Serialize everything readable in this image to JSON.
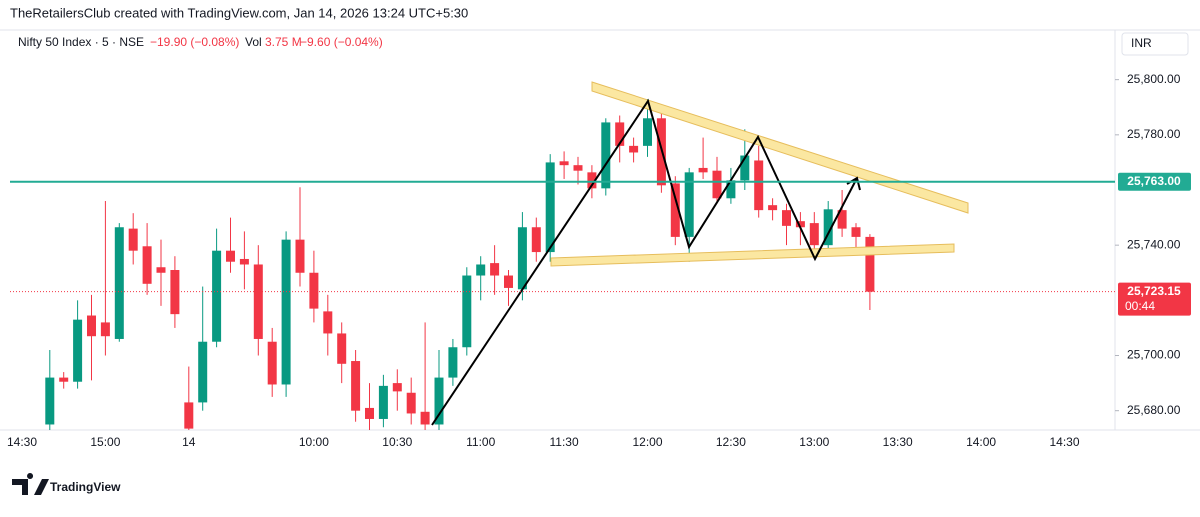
{
  "header": {
    "attribution": "TheRetailersClub created with TradingView.com, Jan 14, 2026 13:24 UTC+5:30",
    "symbol": "Nifty 50 Index · 5 · NSE",
    "change": "−19.90 (−0.08%)",
    "volume_label": "Vol",
    "volume": "3.75 M",
    "volume_change": "−9.60 (−0.04%)",
    "currency": "INR"
  },
  "footer": {
    "brand": "TradingView"
  },
  "chart_data": {
    "type": "candlestick",
    "up_color": "#089981",
    "down_color": "#f23645",
    "categories": [
      "14:30",
      null,
      null,
      null,
      null,
      null,
      "15:00",
      null,
      null,
      null,
      null,
      null,
      "14",
      null,
      null,
      null,
      null,
      null,
      null,
      null,
      null,
      "10:00",
      null,
      null,
      null,
      null,
      null,
      "10:30",
      null,
      null,
      null,
      null,
      null,
      "11:00",
      null,
      null,
      null,
      null,
      null,
      "11:30",
      null,
      null,
      null,
      null,
      null,
      "12:00",
      null,
      null,
      null,
      null,
      null,
      "12:30",
      null,
      null,
      null,
      null,
      null,
      "13:00",
      null,
      null,
      null,
      null,
      null,
      "13:30",
      null,
      null,
      null,
      null,
      null,
      "14:00",
      null,
      null,
      null,
      null,
      null,
      "14:30",
      null,
      null,
      null
    ],
    "open": [
      null,
      null,
      25675,
      25692,
      25690.5,
      25714.5,
      25712,
      25706,
      25746,
      25739.6,
      25732,
      25731,
      25683,
      25683,
      25705,
      25738,
      25735,
      25733,
      25705,
      25689.5,
      25742,
      25730,
      25716,
      25708,
      25698,
      25681,
      25677,
      25690,
      25686.5,
      25679.6,
      25675,
      25692,
      25703,
      25729,
      25733.5,
      25729,
      25724,
      25746.5,
      25737.5,
      25770.4,
      25769,
      25766.4,
      25760.6,
      25784.5,
      25776,
      25776,
      25786,
      25762.4,
      25743,
      25768,
      25767,
      25757,
      25763.5,
      25770.7,
      25754.5,
      25752.7,
      25748.7,
      25748,
      25740,
      25752.7,
      25746.5,
      25743,
      null,
      null,
      null,
      null,
      null,
      null,
      null,
      null,
      null,
      null,
      null,
      null,
      null,
      null,
      null,
      null,
      null
    ],
    "high": [
      null,
      null,
      25702,
      25694,
      25720,
      25722,
      25756,
      25748,
      25751.6,
      25748,
      25742,
      25736,
      25696,
      25725,
      25746,
      25750,
      25745,
      25740,
      25710,
      25745,
      25761,
      25738,
      25722,
      25712,
      25702,
      25690,
      25693,
      25695,
      25692,
      25712,
      25702,
      25706,
      25732,
      25736,
      25740,
      25731,
      25752,
      25750,
      25773,
      25774,
      25772,
      25769,
      25786,
      25787,
      25779,
      25793,
      25788,
      25765,
      25768,
      25779,
      25772,
      25768,
      25782,
      25776,
      25757,
      25755,
      25752,
      25752,
      25756,
      25760,
      25748,
      25744,
      null,
      null,
      null,
      null,
      null,
      null,
      null,
      null,
      null,
      null,
      null,
      null,
      null,
      null,
      null,
      null,
      null
    ],
    "low": [
      null,
      null,
      25673,
      25688,
      25688,
      25691,
      25700,
      25705,
      25733,
      25722,
      25718,
      25710,
      25673,
      25680,
      25703,
      25730,
      25724,
      25700,
      25685,
      25685,
      25725,
      25712,
      25700,
      25690,
      25676,
      25673,
      25674,
      25680,
      25675,
      25673,
      25673,
      25689,
      25700,
      25720,
      25722,
      25718,
      25720,
      25734,
      25734,
      25764,
      25762,
      25757,
      25758,
      25770,
      25770,
      25772,
      25759,
      25740,
      25734,
      25764,
      25755,
      25755,
      25760,
      25750,
      25749,
      25740,
      25740,
      25735,
      25738,
      25743,
      25738,
      25716.5,
      null,
      null,
      null,
      null,
      null,
      null,
      null,
      null,
      null,
      null,
      null,
      null,
      null,
      null,
      null,
      null,
      null
    ],
    "close": [
      null,
      null,
      25692,
      25690.5,
      25713,
      25707,
      25707,
      25746.5,
      25738,
      25726,
      25730,
      25715,
      25673.5,
      25705,
      25738,
      25734,
      25733,
      25706,
      25689.5,
      25742,
      25730,
      25717,
      25708,
      25697,
      25680,
      25677,
      25689,
      25687,
      25679,
      25675,
      25692,
      25703,
      25729,
      25733,
      25729,
      25724.5,
      25746.5,
      25737.5,
      25770,
      25769,
      25767,
      25760.6,
      25784.5,
      25776,
      25773.6,
      25786,
      25761.7,
      25743,
      25766.4,
      25766.4,
      25757,
      25763.5,
      25772.5,
      25752.7,
      25752.7,
      25747,
      25746.5,
      25740,
      25753,
      25746,
      25743,
      25723.15,
      null,
      null,
      null,
      null,
      null,
      null,
      null,
      null,
      null,
      null,
      null,
      null,
      null,
      null,
      null,
      null,
      null
    ],
    "ylim": [
      25673,
      25818
    ],
    "yticks": [
      {
        "value": 25680,
        "label": "25,680.00"
      },
      {
        "value": 25700,
        "label": "25,700.00"
      },
      {
        "value": 25740,
        "label": "25,740.00"
      },
      {
        "value": 25780,
        "label": "25,780.00"
      },
      {
        "value": 25800,
        "label": "25,800.00"
      }
    ],
    "price_line": {
      "value": 25763,
      "label": "25,763.00",
      "color": "#22ab94"
    },
    "last_price": {
      "value": 25723.15,
      "label": "25,723.15",
      "countdown": "00:44"
    }
  }
}
